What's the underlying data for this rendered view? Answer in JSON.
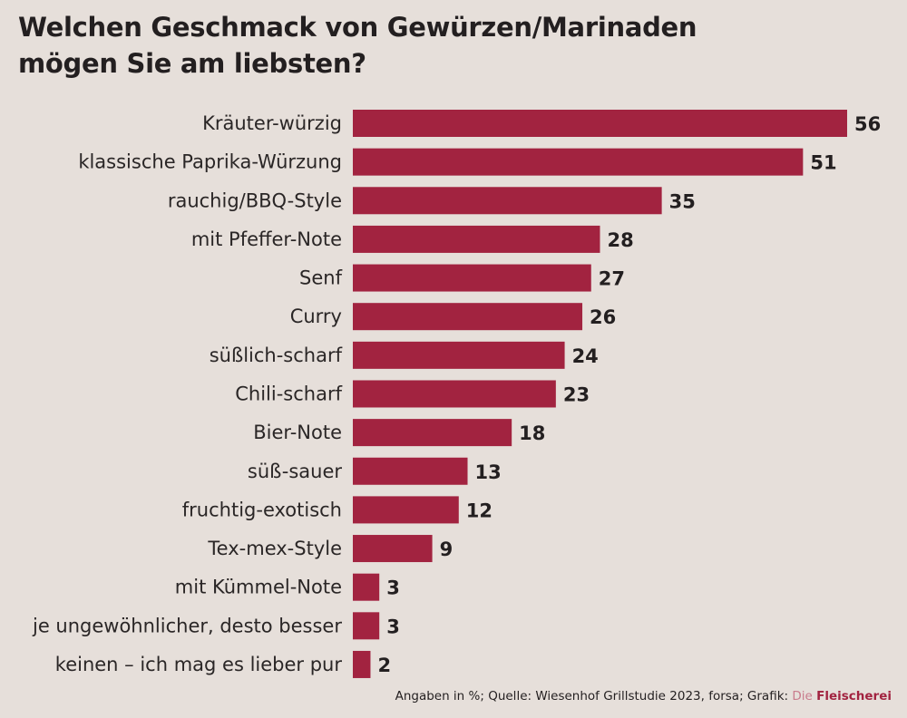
{
  "title_line1": "Welchen Geschmack von Gewürzen/Marinaden",
  "title_line2": "mögen Sie am liebsten?",
  "footer": {
    "text": "Angaben in %; Quelle: Wiesenhof Grillstudie 2023, forsa; Grafik:",
    "brand_prefix": "Die",
    "brand": "Fleischerei"
  },
  "colors": {
    "bar": "#a22340",
    "background": "#e6dfda"
  },
  "chart_data": {
    "type": "bar",
    "orientation": "horizontal",
    "title": "Welchen Geschmack von Gewürzen/Marinaden mögen Sie am liebsten?",
    "unit": "%",
    "categories": [
      "Kräuter-würzig",
      "klassische Paprika-Würzung",
      "rauchig/BBQ-Style",
      "mit Pfeffer-Note",
      "Senf",
      "Curry",
      "süßlich-scharf",
      "Chili-scharf",
      "Bier-Note",
      "süß-sauer",
      "fruchtig-exotisch",
      "Tex-mex-Style",
      "mit Kümmel-Note",
      "je ungewöhnlicher, desto besser",
      "keinen – ich mag es lieber pur"
    ],
    "values": [
      56,
      51,
      35,
      28,
      27,
      26,
      24,
      23,
      18,
      13,
      12,
      9,
      3,
      3,
      2
    ],
    "xlim": [
      0,
      56
    ],
    "grid": false,
    "legend": "none"
  }
}
